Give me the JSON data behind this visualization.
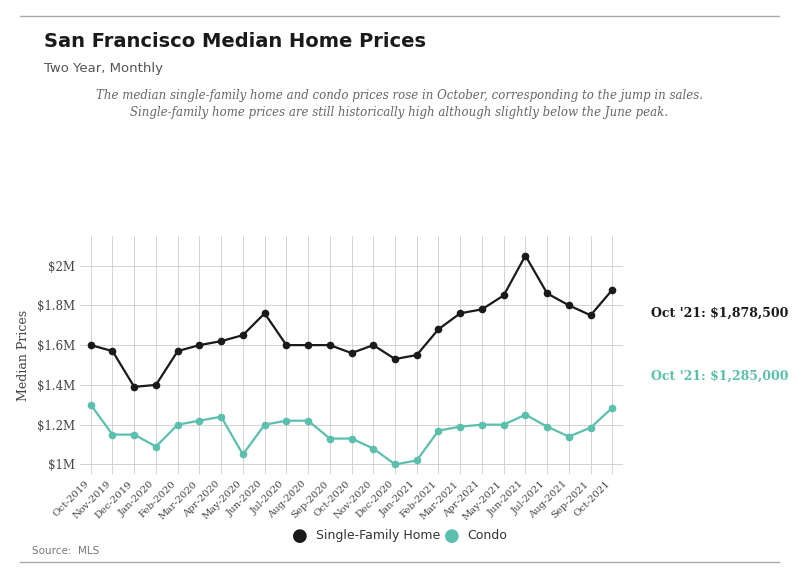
{
  "title": "San Francisco Median Home Prices",
  "subtitle": "Two Year, Monthly",
  "annotation_line1": "The median single-family home and condo prices rose in October, corresponding to the jump in sales.",
  "annotation_line2": "Single-family home prices are still historically high although slightly below the June peak.",
  "source": "Source:  MLS",
  "labels": [
    "Oct-2019",
    "Nov-2019",
    "Dec-2019",
    "Jan-2020",
    "Feb-2020",
    "Mar-2020",
    "Apr-2020",
    "May-2020",
    "Jun-2020",
    "Jul-2020",
    "Aug-2020",
    "Sep-2020",
    "Oct-2020",
    "Nov-2020",
    "Dec-2020",
    "Jan-2021",
    "Feb-2021",
    "Mar-2021",
    "Apr-2021",
    "May-2021",
    "Jun-2021",
    "Jul-2021",
    "Aug-2021",
    "Sep-2021",
    "Oct-2021"
  ],
  "sfh_values": [
    1600000,
    1570000,
    1390000,
    1400000,
    1570000,
    1600000,
    1620000,
    1650000,
    1760000,
    1600000,
    1600000,
    1600000,
    1560000,
    1600000,
    1530000,
    1550000,
    1680000,
    1760000,
    1780000,
    1850000,
    2050000,
    1860000,
    1800000,
    1750000,
    1878500
  ],
  "condo_values": [
    1300000,
    1150000,
    1150000,
    1090000,
    1200000,
    1220000,
    1240000,
    1050000,
    1200000,
    1220000,
    1220000,
    1130000,
    1130000,
    1080000,
    1000000,
    1020000,
    1170000,
    1190000,
    1200000,
    1200000,
    1250000,
    1190000,
    1140000,
    1185000,
    1285000
  ],
  "sfh_color": "#1a1a1a",
  "condo_color": "#5bbfad",
  "sfh_label": "Single-Family Home",
  "condo_label": "Condo",
  "sfh_annotation": "Oct '21: $1,878,500",
  "condo_annotation": "Oct '21: $1,285,000",
  "ylim": [
    950000,
    2150000
  ],
  "yticks": [
    1000000,
    1200000,
    1400000,
    1600000,
    1800000,
    2000000
  ],
  "ytick_labels": [
    "$1M",
    "$1.2M",
    "$1.4M",
    "$1.6M",
    "$1.8M",
    "$2M"
  ],
  "background_color": "#ffffff",
  "grid_color": "#cccccc"
}
